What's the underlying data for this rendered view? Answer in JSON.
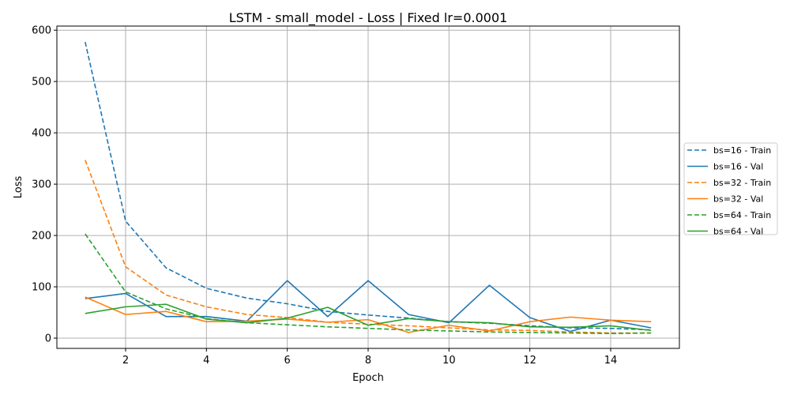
{
  "chart_data": {
    "type": "line",
    "title": "LSTM - small_model - Loss | Fixed lr=0.0001",
    "xlabel": "Epoch",
    "ylabel": "Loss",
    "xlim": [
      0.3,
      15.7
    ],
    "ylim": [
      -20,
      608
    ],
    "xticks": [
      2,
      4,
      6,
      8,
      10,
      12,
      14
    ],
    "yticks": [
      0,
      100,
      200,
      300,
      400,
      500,
      600
    ],
    "grid": true,
    "legend_position": "right",
    "x": [
      1,
      2,
      3,
      4,
      5,
      6,
      7,
      8,
      9,
      10,
      11,
      12,
      13,
      14,
      15
    ],
    "series": [
      {
        "name": "bs=16 - Train",
        "color": "#1f77b4",
        "style": "dashed",
        "values": [
          577,
          228,
          137,
          97,
          78,
          67,
          52,
          45,
          39,
          32,
          29,
          24,
          20,
          19,
          16
        ]
      },
      {
        "name": "bs=16 - Val",
        "color": "#1f77b4",
        "style": "solid",
        "values": [
          77,
          87,
          42,
          42,
          33,
          112,
          42,
          112,
          46,
          30,
          103,
          40,
          13,
          35,
          20
        ]
      },
      {
        "name": "bs=32 - Train",
        "color": "#ff7f0e",
        "style": "dashed",
        "values": [
          347,
          139,
          84,
          61,
          46,
          40,
          31,
          27,
          24,
          20,
          16,
          15,
          12,
          10,
          10
        ]
      },
      {
        "name": "bs=32 - Val",
        "color": "#ff7f0e",
        "style": "solid",
        "values": [
          80,
          46,
          52,
          32,
          33,
          37,
          31,
          36,
          11,
          25,
          14,
          32,
          41,
          35,
          32
        ]
      },
      {
        "name": "bs=64 - Train",
        "color": "#2ca02c",
        "style": "dashed",
        "values": [
          203,
          90,
          57,
          38,
          30,
          26,
          22,
          19,
          16,
          14,
          12,
          11,
          10,
          9,
          10
        ]
      },
      {
        "name": "bs=64 - Val",
        "color": "#2ca02c",
        "style": "solid",
        "values": [
          48,
          61,
          66,
          37,
          30,
          39,
          60,
          25,
          38,
          32,
          30,
          22,
          21,
          24,
          15
        ]
      }
    ]
  }
}
